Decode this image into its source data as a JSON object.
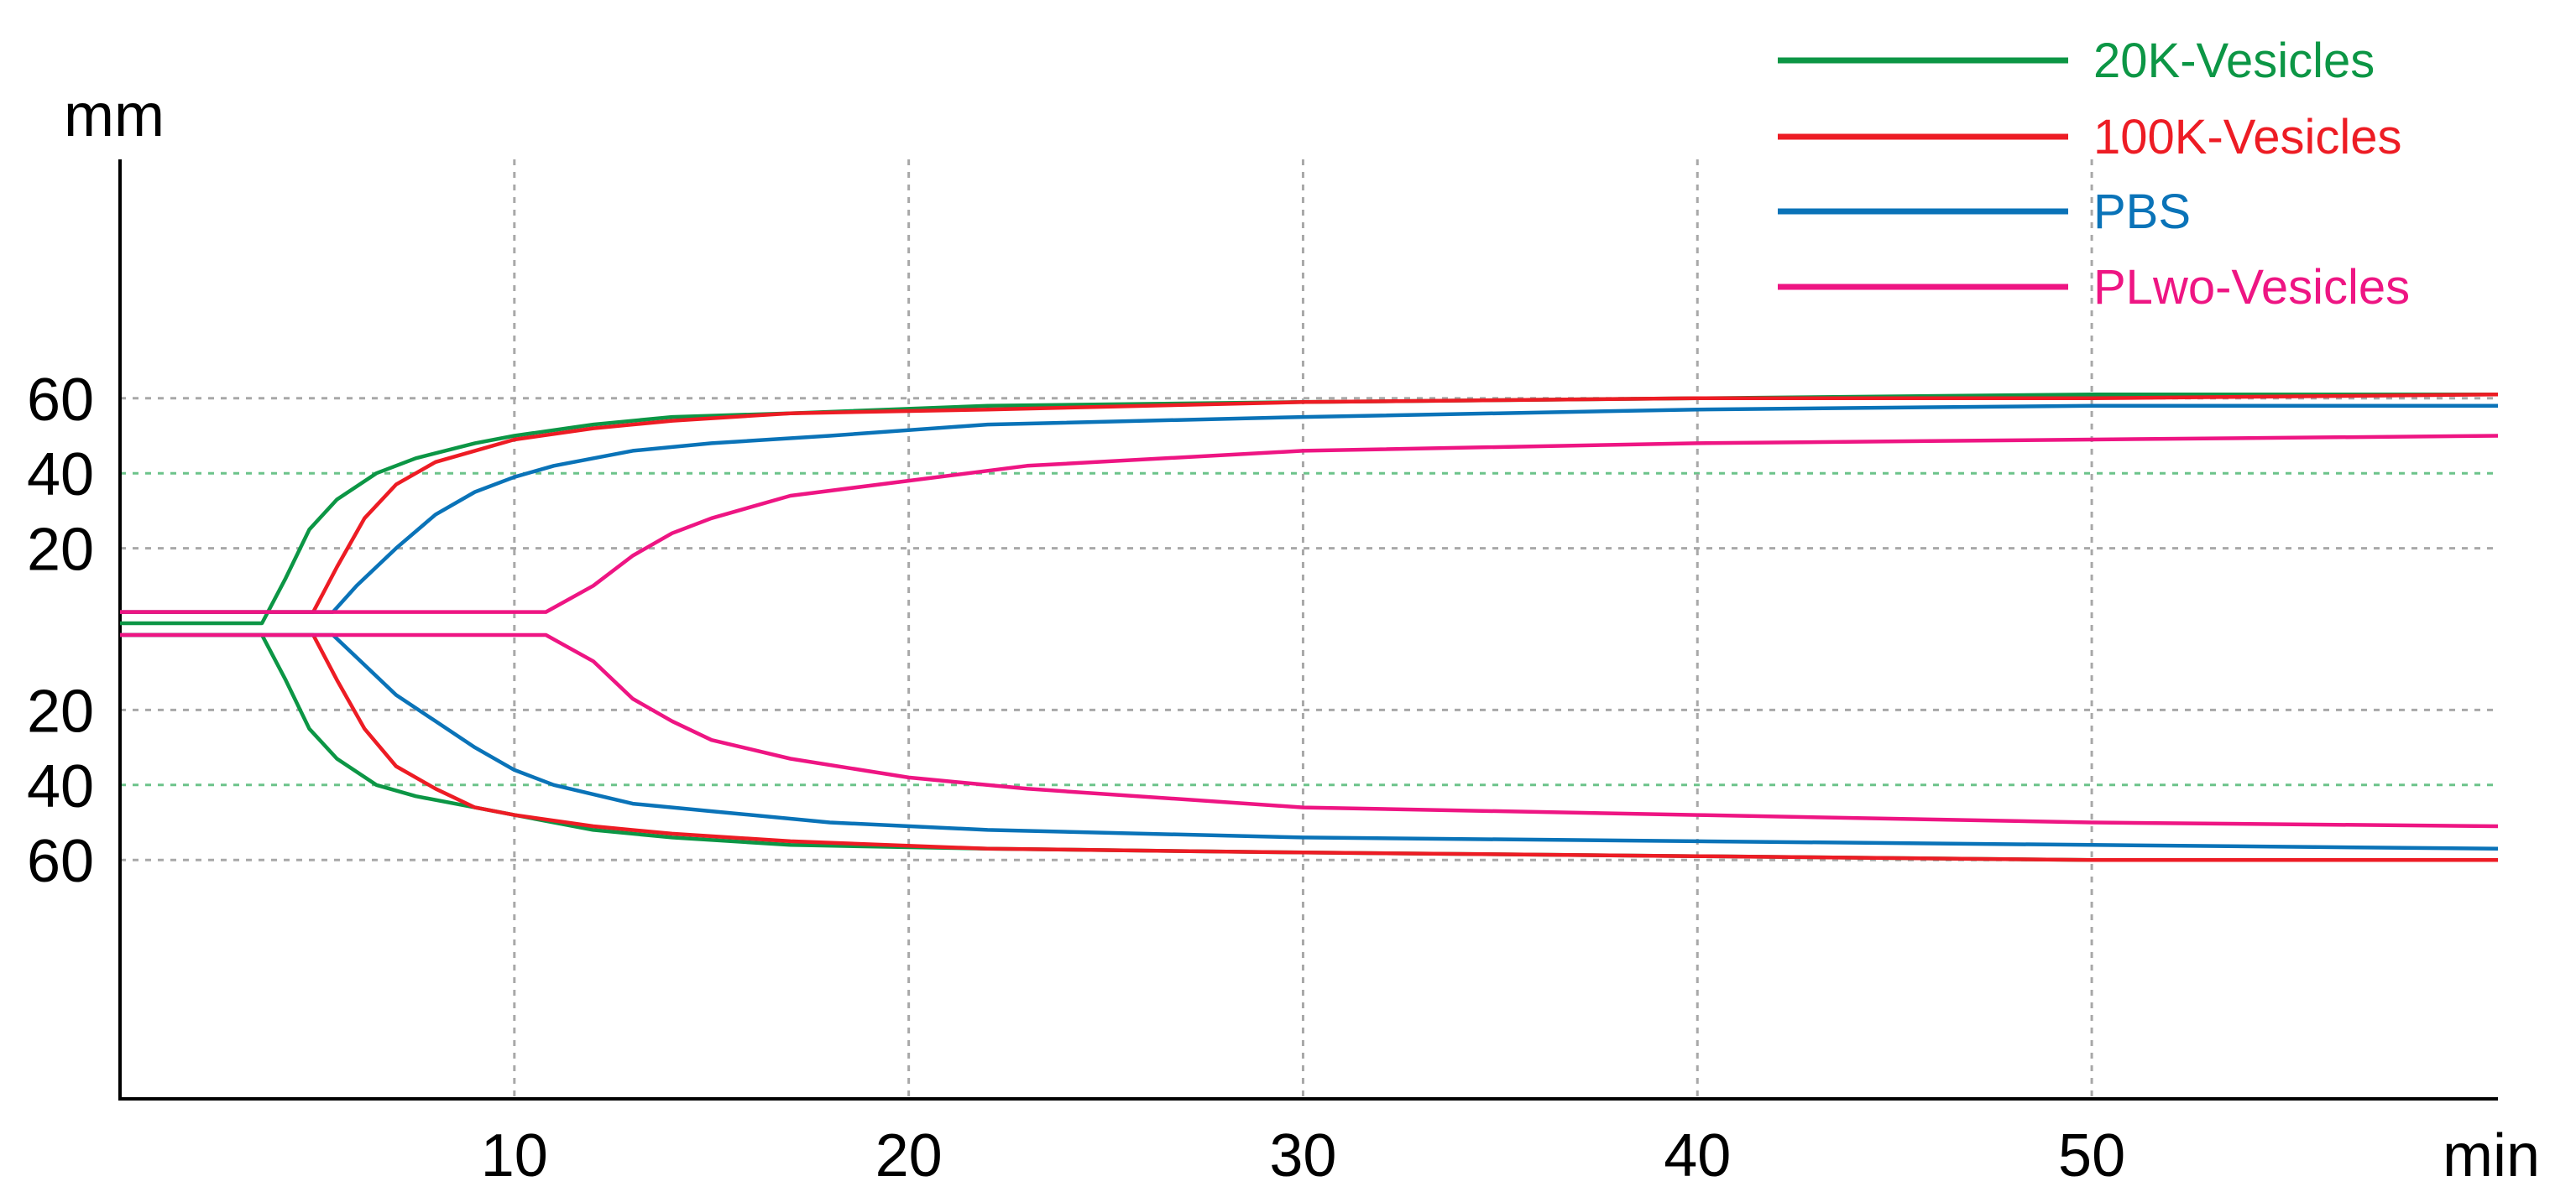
{
  "chart_data": {
    "type": "line",
    "title": "",
    "y_unit": "mm",
    "x_unit": "min",
    "xlim": [
      0,
      60.3
    ],
    "x_ticks": [
      10,
      20,
      30,
      40,
      50
    ],
    "x_tick_labels": [
      "10",
      "20",
      "30",
      "40",
      "50"
    ],
    "y_ticks": [
      20,
      40,
      60
    ],
    "y_tick_labels": [
      "20",
      "40",
      "60"
    ],
    "grid": true,
    "legend_position": "top-right",
    "series": [
      {
        "name": "20K-Vesicles",
        "color": "#0c9645",
        "upper": [
          [
            0,
            0
          ],
          [
            3.6,
            0
          ],
          [
            4.2,
            12
          ],
          [
            4.8,
            25
          ],
          [
            5.5,
            33
          ],
          [
            6.5,
            40
          ],
          [
            7.5,
            44
          ],
          [
            9,
            48
          ],
          [
            10,
            50
          ],
          [
            12,
            53
          ],
          [
            14,
            55
          ],
          [
            17,
            56
          ],
          [
            22,
            58
          ],
          [
            30,
            59
          ],
          [
            40,
            60
          ],
          [
            50,
            61
          ],
          [
            60.3,
            61
          ]
        ],
        "lower": [
          [
            0,
            0
          ],
          [
            3.6,
            0
          ],
          [
            4.2,
            12
          ],
          [
            4.8,
            25
          ],
          [
            5.5,
            33
          ],
          [
            6.5,
            40
          ],
          [
            7.5,
            43
          ],
          [
            9,
            46
          ],
          [
            10,
            48
          ],
          [
            12,
            52
          ],
          [
            14,
            54
          ],
          [
            17,
            56
          ],
          [
            22,
            57
          ],
          [
            30,
            58
          ],
          [
            40,
            59
          ],
          [
            50,
            60
          ],
          [
            60.3,
            60
          ]
        ]
      },
      {
        "name": "100K-Vesicles",
        "color": "#ed1c24",
        "upper": [
          [
            0,
            3
          ],
          [
            4.9,
            3
          ],
          [
            5.5,
            15
          ],
          [
            6.2,
            28
          ],
          [
            7,
            37
          ],
          [
            8,
            43
          ],
          [
            9,
            46
          ],
          [
            10,
            49
          ],
          [
            12,
            52
          ],
          [
            14,
            54
          ],
          [
            17,
            56
          ],
          [
            22,
            57
          ],
          [
            30,
            59
          ],
          [
            40,
            60
          ],
          [
            50,
            60
          ],
          [
            60.3,
            61
          ]
        ],
        "lower": [
          [
            0,
            0
          ],
          [
            4.9,
            0
          ],
          [
            5.5,
            12
          ],
          [
            6.2,
            25
          ],
          [
            7,
            35
          ],
          [
            8,
            41
          ],
          [
            9,
            46
          ],
          [
            10,
            48
          ],
          [
            12,
            51
          ],
          [
            14,
            53
          ],
          [
            17,
            55
          ],
          [
            22,
            57
          ],
          [
            30,
            58
          ],
          [
            40,
            59
          ],
          [
            50,
            60
          ],
          [
            60.3,
            60
          ]
        ]
      },
      {
        "name": "PBS",
        "color": "#0a73b8",
        "upper": [
          [
            0,
            3
          ],
          [
            5.4,
            3
          ],
          [
            6,
            10
          ],
          [
            7,
            20
          ],
          [
            8,
            29
          ],
          [
            9,
            35
          ],
          [
            10,
            39
          ],
          [
            11,
            42
          ],
          [
            13,
            46
          ],
          [
            15,
            48
          ],
          [
            18,
            50
          ],
          [
            22,
            53
          ],
          [
            30,
            55
          ],
          [
            40,
            57
          ],
          [
            50,
            58
          ],
          [
            60.3,
            58
          ]
        ],
        "lower": [
          [
            0,
            0
          ],
          [
            5.4,
            0
          ],
          [
            6,
            6
          ],
          [
            7,
            16
          ],
          [
            8,
            23
          ],
          [
            9,
            30
          ],
          [
            10,
            36
          ],
          [
            11,
            40
          ],
          [
            13,
            45
          ],
          [
            15,
            47
          ],
          [
            18,
            50
          ],
          [
            22,
            52
          ],
          [
            30,
            54
          ],
          [
            40,
            55
          ],
          [
            50,
            56
          ],
          [
            60.3,
            57
          ]
        ]
      },
      {
        "name": "PLwo-Vesicles",
        "color": "#ee1583",
        "upper": [
          [
            0,
            3
          ],
          [
            10.8,
            3
          ],
          [
            12,
            10
          ],
          [
            13,
            18
          ],
          [
            14,
            24
          ],
          [
            15,
            28
          ],
          [
            17,
            34
          ],
          [
            20,
            38
          ],
          [
            23,
            42
          ],
          [
            30,
            46
          ],
          [
            40,
            48
          ],
          [
            50,
            49
          ],
          [
            60.3,
            50
          ]
        ],
        "lower": [
          [
            0,
            0
          ],
          [
            10.8,
            0
          ],
          [
            12,
            7
          ],
          [
            13,
            17
          ],
          [
            14,
            23
          ],
          [
            15,
            28
          ],
          [
            17,
            33
          ],
          [
            20,
            38
          ],
          [
            23,
            41
          ],
          [
            30,
            46
          ],
          [
            40,
            48
          ],
          [
            50,
            50
          ],
          [
            60.3,
            51
          ]
        ]
      }
    ]
  }
}
